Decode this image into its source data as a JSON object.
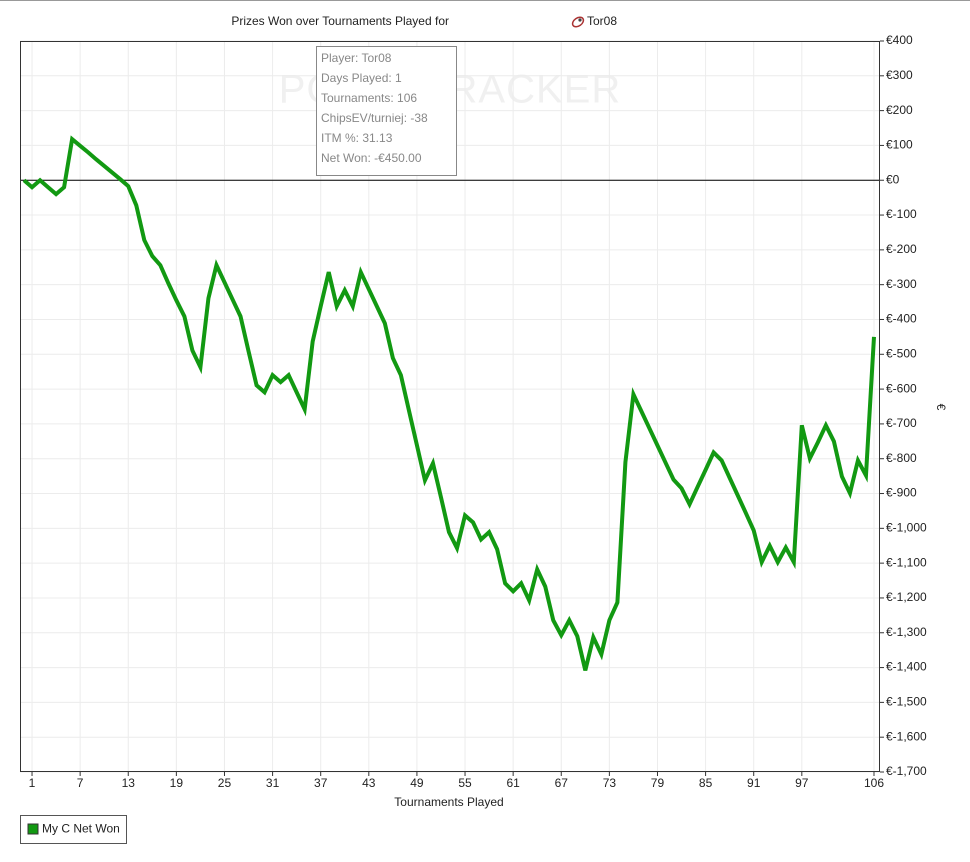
{
  "chart_data": {
    "type": "line",
    "title": "Prizes Won over Tournaments Played for",
    "title_player": "Tor08",
    "x_label": "Tournaments Played",
    "y_label": "€",
    "watermark": "POKERTRACKER",
    "tooltip": [
      "Player: Tor08",
      "Days Played: 1",
      "Tournaments: 106",
      "ChipsEV/turniej: -38",
      "ITM %: 31.13",
      "Net Won: -€450.00"
    ],
    "legend": "bottom-left",
    "grid": true,
    "x": [
      0,
      1,
      2,
      3,
      4,
      5,
      6,
      7,
      8,
      9,
      10,
      11,
      12,
      13,
      14,
      15,
      16,
      17,
      18,
      19,
      20,
      21,
      22,
      23,
      24,
      25,
      26,
      27,
      28,
      29,
      30,
      31,
      32,
      33,
      34,
      35,
      36,
      37,
      38,
      39,
      40,
      41,
      42,
      43,
      44,
      45,
      46,
      47,
      48,
      49,
      50,
      51,
      52,
      53,
      54,
      55,
      56,
      57,
      58,
      59,
      60,
      61,
      62,
      63,
      64,
      65,
      66,
      67,
      68,
      69,
      70,
      71,
      72,
      73,
      74,
      75,
      76,
      77,
      78,
      79,
      80,
      81,
      82,
      83,
      84,
      85,
      86,
      87,
      88,
      89,
      90,
      91,
      92,
      93,
      94,
      95,
      96,
      97,
      98,
      99,
      100,
      101,
      102,
      103,
      104,
      105,
      106
    ],
    "series": [
      {
        "name": "My C Net Won",
        "color": "#129912",
        "values": [
          0,
          -20,
          0,
          -20,
          -40,
          -20,
          118,
          99,
          80,
          60,
          41,
          22,
          3,
          -17,
          -72,
          -172,
          -218,
          -244,
          -296,
          -345,
          -391,
          -489,
          -537,
          -339,
          -244,
          -293,
          -342,
          -391,
          -491,
          -589,
          -609,
          -560,
          -580,
          -560,
          -609,
          -658,
          -463,
          -362,
          -264,
          -362,
          -316,
          -362,
          -264,
          -313,
          -362,
          -411,
          -511,
          -560,
          -661,
          -761,
          -862,
          -813,
          -911,
          -1011,
          -1057,
          -963,
          -983,
          -1032,
          -1011,
          -1060,
          -1158,
          -1181,
          -1158,
          -1207,
          -1118,
          -1167,
          -1264,
          -1307,
          -1264,
          -1310,
          -1408,
          -1313,
          -1362,
          -1264,
          -1213,
          -810,
          -615,
          -664,
          -713,
          -762,
          -811,
          -860,
          -885,
          -931,
          -881,
          -832,
          -782,
          -805,
          -855,
          -905,
          -955,
          -1006,
          -1097,
          -1050,
          -1097,
          -1055,
          -1097,
          -704,
          -799,
          -753,
          -704,
          -750,
          -851,
          -899,
          -805,
          -848,
          -450
        ]
      }
    ],
    "xlim": [
      -0.5,
      106.75
    ],
    "xticks": [
      1,
      7,
      13,
      19,
      25,
      31,
      37,
      43,
      49,
      55,
      61,
      67,
      73,
      79,
      85,
      91,
      97,
      106
    ],
    "ylim": [
      -1700,
      400
    ],
    "yticks": [
      {
        "value": 400,
        "label": "€400"
      },
      {
        "value": 300,
        "label": "€300"
      },
      {
        "value": 200,
        "label": "€200"
      },
      {
        "value": 100,
        "label": "€100"
      },
      {
        "value": 0,
        "label": "€0"
      },
      {
        "value": -100,
        "label": "€-100"
      },
      {
        "value": -200,
        "label": "€-200"
      },
      {
        "value": -300,
        "label": "€-300"
      },
      {
        "value": -400,
        "label": "€-400"
      },
      {
        "value": -500,
        "label": "€-500"
      },
      {
        "value": -600,
        "label": "€-600"
      },
      {
        "value": -700,
        "label": "€-700"
      },
      {
        "value": -800,
        "label": "€-800"
      },
      {
        "value": -900,
        "label": "€-900"
      },
      {
        "value": -1000,
        "label": "€-1,000"
      },
      {
        "value": -1100,
        "label": "€-1,100"
      },
      {
        "value": -1200,
        "label": "€-1,200"
      },
      {
        "value": -1300,
        "label": "€-1,300"
      },
      {
        "value": -1400,
        "label": "€-1,400"
      },
      {
        "value": -1500,
        "label": "€-1,500"
      },
      {
        "value": -1600,
        "label": "€-1,600"
      },
      {
        "value": -1700,
        "label": "€-1,700"
      }
    ]
  }
}
